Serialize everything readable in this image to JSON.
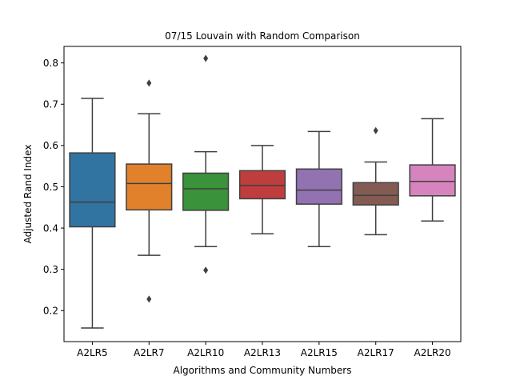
{
  "chart_data": {
    "type": "box",
    "title": "07/15 Louvain with Random Comparison",
    "xlabel": "Algorithms and Community Numbers",
    "ylabel": "Adjusted Rand Index",
    "ylim": [
      0.125,
      0.84
    ],
    "yticks": [
      0.2,
      0.3,
      0.4,
      0.5,
      0.6,
      0.7,
      0.8
    ],
    "grid": false,
    "categories": [
      "A2LR5",
      "A2LR7",
      "A2LR10",
      "A2LR13",
      "A2LR15",
      "A2LR17",
      "A2LR20"
    ],
    "colors": [
      "#3274a1",
      "#e1812c",
      "#3a923a",
      "#c03d3e",
      "#9372b2",
      "#845b53",
      "#d684bd"
    ],
    "boxes": [
      {
        "whisker_low": 0.158,
        "q1": 0.403,
        "median": 0.463,
        "q3": 0.582,
        "whisker_high": 0.714,
        "outliers": []
      },
      {
        "whisker_low": 0.334,
        "q1": 0.444,
        "median": 0.508,
        "q3": 0.555,
        "whisker_high": 0.677,
        "outliers": [
          0.751,
          0.228
        ]
      },
      {
        "whisker_low": 0.355,
        "q1": 0.443,
        "median": 0.495,
        "q3": 0.533,
        "whisker_high": 0.585,
        "outliers": [
          0.811,
          0.298
        ]
      },
      {
        "whisker_low": 0.386,
        "q1": 0.471,
        "median": 0.503,
        "q3": 0.539,
        "whisker_high": 0.6,
        "outliers": []
      },
      {
        "whisker_low": 0.355,
        "q1": 0.458,
        "median": 0.492,
        "q3": 0.543,
        "whisker_high": 0.634,
        "outliers": []
      },
      {
        "whisker_low": 0.384,
        "q1": 0.456,
        "median": 0.479,
        "q3": 0.51,
        "whisker_high": 0.56,
        "outliers": [
          0.636
        ]
      },
      {
        "whisker_low": 0.417,
        "q1": 0.478,
        "median": 0.513,
        "q3": 0.553,
        "whisker_high": 0.665,
        "outliers": []
      }
    ]
  }
}
